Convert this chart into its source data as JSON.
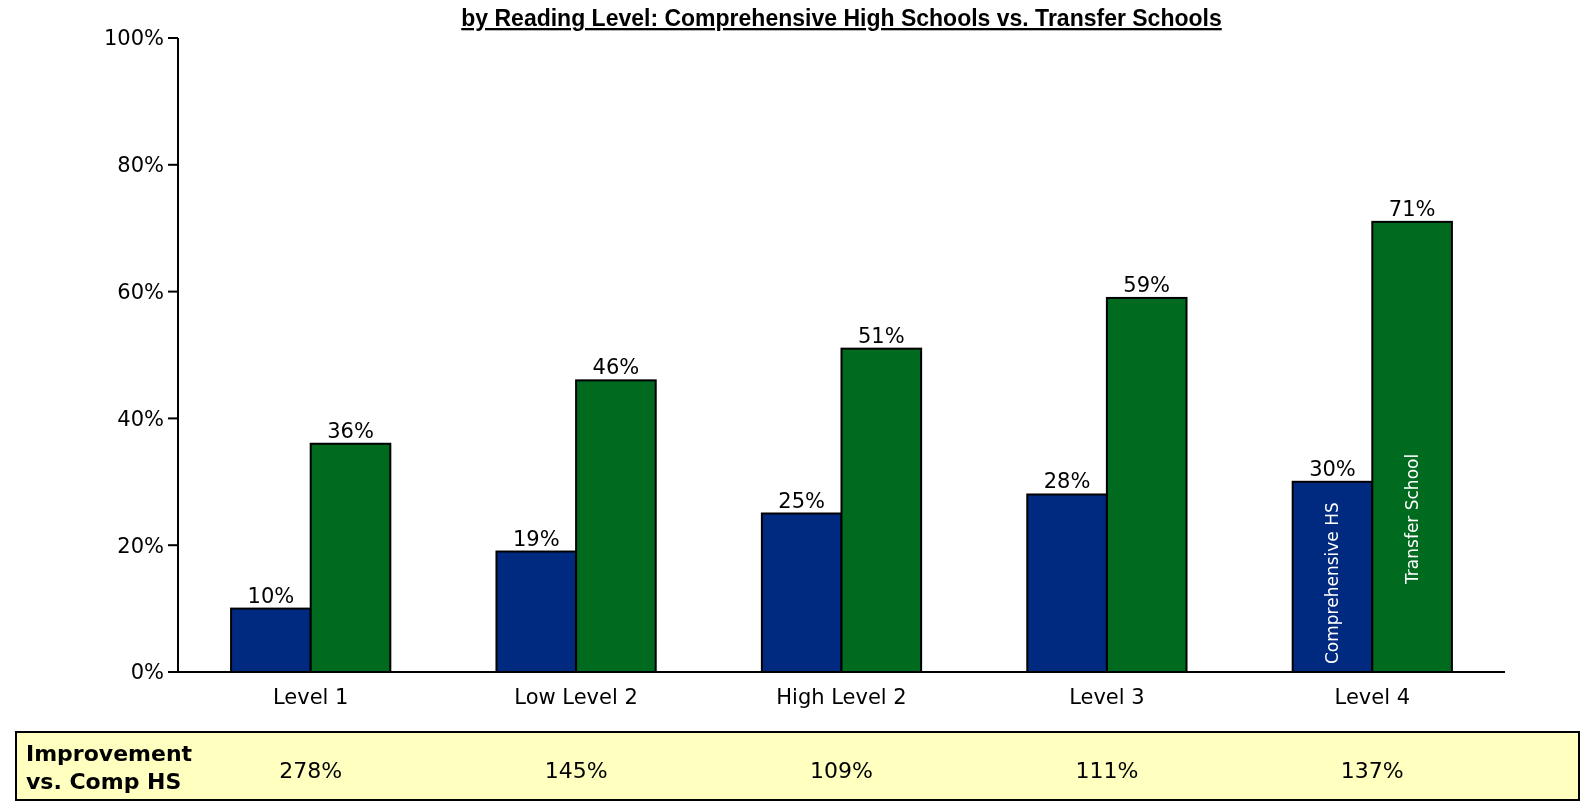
{
  "chart_data": {
    "type": "bar",
    "title": "by Reading Level: Comprehensive High Schools vs. Transfer Schools",
    "categories": [
      "Level 1",
      "Low Level 2",
      "High Level 2",
      "Level 3",
      "Level 4"
    ],
    "series": [
      {
        "name": "Comprehensive HS",
        "color": "#002a7f",
        "values": [
          10,
          19,
          25,
          28,
          30
        ],
        "value_labels": [
          "10%",
          "19%",
          "25%",
          "28%",
          "30%"
        ]
      },
      {
        "name": "Transfer School",
        "color": "#006a1e",
        "values": [
          36,
          46,
          51,
          59,
          71
        ],
        "value_labels": [
          "36%",
          "46%",
          "51%",
          "59%",
          "71%"
        ]
      }
    ],
    "ylim": [
      0,
      100
    ],
    "yticks": [
      {
        "value": 0,
        "label": "0%"
      },
      {
        "value": 20,
        "label": "20%"
      },
      {
        "value": 40,
        "label": "40%"
      },
      {
        "value": 60,
        "label": "60%"
      },
      {
        "value": 80,
        "label": "80%"
      },
      {
        "value": 100,
        "label": "100%"
      }
    ],
    "legend": false,
    "grid": false,
    "annotations": [
      "Improvement vs. Comp HS",
      "278%",
      "145%",
      "109%",
      "111%",
      "137%"
    ]
  }
}
